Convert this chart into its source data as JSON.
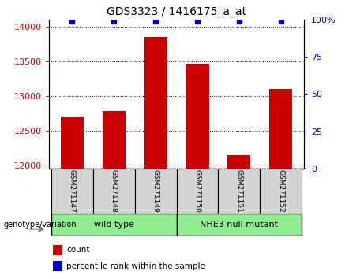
{
  "title": "GDS3323 / 1416175_a_at",
  "samples": [
    "GSM271147",
    "GSM271148",
    "GSM271149",
    "GSM271150",
    "GSM271151",
    "GSM271152"
  ],
  "counts": [
    12700,
    12775,
    13850,
    13460,
    12150,
    13100
  ],
  "percentile_ranks": [
    99,
    99,
    99,
    99,
    99,
    99
  ],
  "ylim_left": [
    11950,
    14100
  ],
  "ylim_right": [
    0,
    100
  ],
  "yticks_left": [
    12000,
    12500,
    13000,
    13500,
    14000
  ],
  "yticks_right": [
    0,
    25,
    50,
    75,
    100
  ],
  "bar_color": "#cc0000",
  "dot_color": "#0000cc",
  "group_ranges": [
    [
      -0.5,
      2.5,
      "wild type",
      "#90ee90"
    ],
    [
      2.5,
      5.5,
      "NHE3 null mutant",
      "#90ee90"
    ]
  ],
  "group_label_prefix": "genotype/variation",
  "legend_items": [
    {
      "label": "count",
      "color": "#cc0000"
    },
    {
      "label": "percentile rank within the sample",
      "color": "#0000cc"
    }
  ],
  "background_color": "#ffffff",
  "tick_label_box_color": "#d3d3d3",
  "bar_bottom": 11950
}
